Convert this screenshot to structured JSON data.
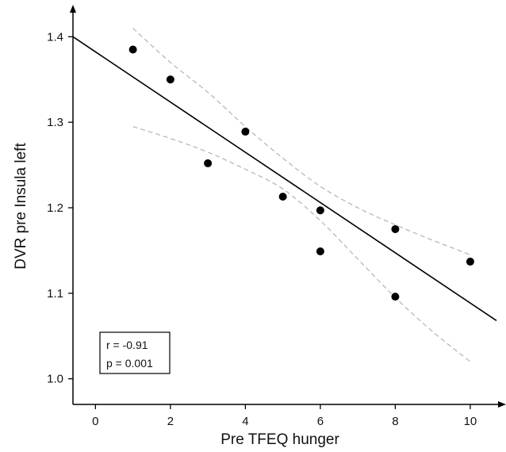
{
  "chart_data": {
    "type": "scatter",
    "xlabel": "Pre TFEQ hunger",
    "ylabel": "DVR pre Insula left",
    "xlim": [
      -0.6,
      10.7
    ],
    "ylim": [
      0.97,
      1.43
    ],
    "x_ticks": [
      0,
      2,
      4,
      6,
      8,
      10
    ],
    "x_tick_labels": [
      "0",
      "2",
      "4",
      "6",
      "8",
      "10"
    ],
    "y_ticks": [
      1.0,
      1.1,
      1.2,
      1.3,
      1.4
    ],
    "y_tick_labels": [
      "1.0",
      "1.1",
      "1.2",
      "1.3",
      "1.4"
    ],
    "grid": false,
    "points": [
      {
        "x": 1,
        "y": 1.385
      },
      {
        "x": 2,
        "y": 1.35
      },
      {
        "x": 3,
        "y": 1.252
      },
      {
        "x": 4,
        "y": 1.289
      },
      {
        "x": 5,
        "y": 1.213
      },
      {
        "x": 6,
        "y": 1.197
      },
      {
        "x": 6,
        "y": 1.149
      },
      {
        "x": 8,
        "y": 1.175
      },
      {
        "x": 8,
        "y": 1.096
      },
      {
        "x": 10,
        "y": 1.137
      }
    ],
    "regression_line": {
      "x": [
        -0.6,
        10.7
      ],
      "y": [
        1.4,
        1.068
      ]
    },
    "confidence_band_upper": {
      "x": [
        1,
        2,
        3,
        4,
        5,
        6,
        7,
        8,
        9,
        10
      ],
      "y": [
        1.41,
        1.37,
        1.335,
        1.295,
        1.258,
        1.225,
        1.2,
        1.18,
        1.162,
        1.145
      ]
    },
    "confidence_band_lower": {
      "x": [
        1,
        2,
        3,
        4,
        5,
        6,
        7,
        8,
        9,
        10
      ],
      "y": [
        1.295,
        1.281,
        1.265,
        1.245,
        1.222,
        1.185,
        1.14,
        1.095,
        1.055,
        1.02
      ]
    },
    "annotation": {
      "lines": [
        "r = -0.91",
        "p = 0.001"
      ],
      "placement": "bottom-left"
    },
    "colors": {
      "points": "#000000",
      "line": "#000000",
      "band": "#b8b8b8",
      "axis": "#000000"
    }
  }
}
